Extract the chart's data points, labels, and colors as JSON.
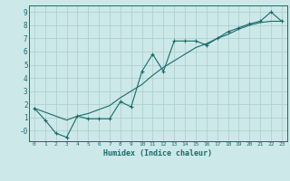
{
  "xlabel": "Humidex (Indice chaleur)",
  "ylabel": "",
  "bg_color": "#cce8e8",
  "grid_color": "#aacccc",
  "line_color": "#1a6b6b",
  "xlim": [
    -0.5,
    23.5
  ],
  "ylim": [
    -0.8,
    9.5
  ],
  "xticks": [
    0,
    1,
    2,
    3,
    4,
    5,
    6,
    7,
    8,
    9,
    10,
    11,
    12,
    13,
    14,
    15,
    16,
    17,
    18,
    19,
    20,
    21,
    22,
    23
  ],
  "yticks": [
    0,
    1,
    2,
    3,
    4,
    5,
    6,
    7,
    8,
    9
  ],
  "ytick_labels": [
    "-0",
    "1",
    "2",
    "3",
    "4",
    "5",
    "6",
    "7",
    "8",
    "9"
  ],
  "data_x": [
    0,
    1,
    2,
    3,
    4,
    5,
    6,
    7,
    8,
    9,
    10,
    11,
    12,
    13,
    14,
    15,
    16,
    17,
    18,
    19,
    20,
    21,
    22,
    23
  ],
  "data_y1": [
    1.7,
    0.8,
    -0.2,
    -0.5,
    1.1,
    0.9,
    0.9,
    0.9,
    2.2,
    1.8,
    4.5,
    5.8,
    4.5,
    6.8,
    6.8,
    6.8,
    6.5,
    7.0,
    7.5,
    7.8,
    8.1,
    8.3,
    9.0,
    8.3
  ],
  "data_y2": [
    1.7,
    1.4,
    1.1,
    0.8,
    1.1,
    1.3,
    1.6,
    1.9,
    2.5,
    3.0,
    3.5,
    4.2,
    4.8,
    5.3,
    5.8,
    6.3,
    6.6,
    7.0,
    7.3,
    7.7,
    8.0,
    8.2,
    8.3,
    8.3
  ]
}
